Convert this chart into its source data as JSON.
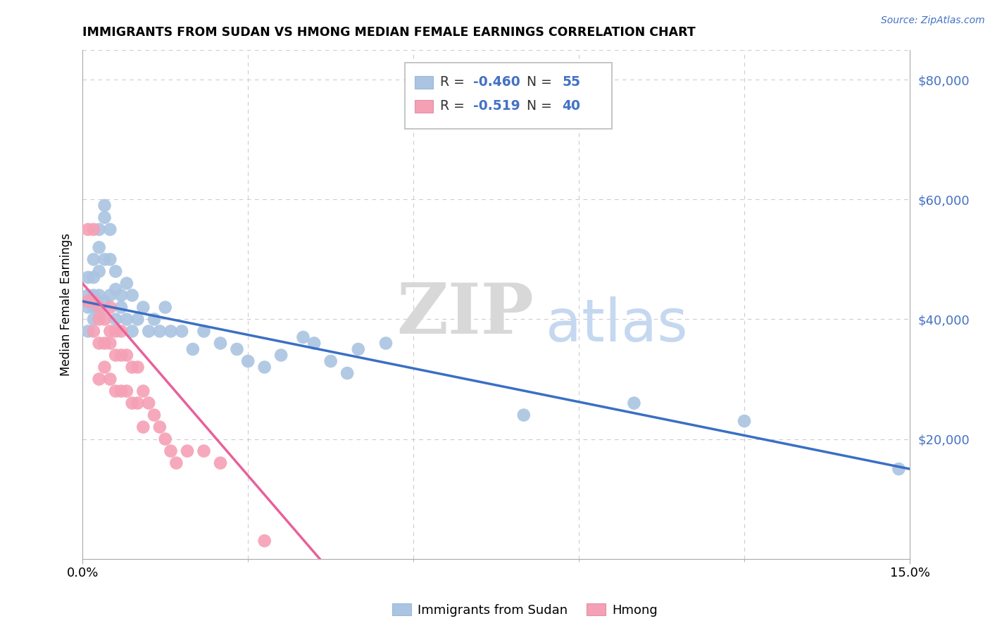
{
  "title": "IMMIGRANTS FROM SUDAN VS HMONG MEDIAN FEMALE EARNINGS CORRELATION CHART",
  "source": "Source: ZipAtlas.com",
  "ylabel": "Median Female Earnings",
  "xlim": [
    0.0,
    0.15
  ],
  "ylim": [
    0,
    85000
  ],
  "sudan_R": -0.46,
  "sudan_N": 55,
  "hmong_R": -0.519,
  "hmong_N": 40,
  "sudan_color": "#aac4e2",
  "hmong_color": "#f5a0b5",
  "sudan_line_color": "#3a6fc4",
  "hmong_line_color": "#e8609a",
  "legend_sudan_label": "Immigrants from Sudan",
  "legend_hmong_label": "Hmong",
  "watermark_ZIP": "ZIP",
  "watermark_atlas": "atlas",
  "background_color": "#ffffff",
  "grid_color": "#cccccc",
  "sudan_x": [
    0.001,
    0.001,
    0.001,
    0.001,
    0.002,
    0.002,
    0.002,
    0.002,
    0.002,
    0.003,
    0.003,
    0.003,
    0.003,
    0.003,
    0.004,
    0.004,
    0.004,
    0.004,
    0.005,
    0.005,
    0.005,
    0.006,
    0.006,
    0.006,
    0.007,
    0.007,
    0.008,
    0.008,
    0.009,
    0.009,
    0.01,
    0.011,
    0.012,
    0.013,
    0.014,
    0.015,
    0.016,
    0.018,
    0.02,
    0.022,
    0.025,
    0.028,
    0.03,
    0.033,
    0.036,
    0.04,
    0.042,
    0.045,
    0.048,
    0.05,
    0.055,
    0.08,
    0.1,
    0.12,
    0.148
  ],
  "sudan_y": [
    47000,
    44000,
    42000,
    38000,
    50000,
    47000,
    44000,
    42000,
    40000,
    55000,
    52000,
    48000,
    44000,
    41000,
    59000,
    57000,
    50000,
    43000,
    55000,
    50000,
    44000,
    48000,
    45000,
    40000,
    44000,
    42000,
    46000,
    40000,
    44000,
    38000,
    40000,
    42000,
    38000,
    40000,
    38000,
    42000,
    38000,
    38000,
    35000,
    38000,
    36000,
    35000,
    33000,
    32000,
    34000,
    37000,
    36000,
    33000,
    31000,
    35000,
    36000,
    24000,
    26000,
    23000,
    15000
  ],
  "hmong_x": [
    0.001,
    0.001,
    0.002,
    0.002,
    0.002,
    0.003,
    0.003,
    0.003,
    0.003,
    0.004,
    0.004,
    0.004,
    0.005,
    0.005,
    0.005,
    0.005,
    0.006,
    0.006,
    0.006,
    0.007,
    0.007,
    0.007,
    0.008,
    0.008,
    0.009,
    0.009,
    0.01,
    0.01,
    0.011,
    0.011,
    0.012,
    0.013,
    0.014,
    0.015,
    0.016,
    0.017,
    0.019,
    0.022,
    0.025,
    0.033
  ],
  "hmong_y": [
    55000,
    43000,
    55000,
    43000,
    38000,
    42000,
    40000,
    36000,
    30000,
    40000,
    36000,
    32000,
    42000,
    38000,
    36000,
    30000,
    38000,
    34000,
    28000,
    38000,
    34000,
    28000,
    34000,
    28000,
    32000,
    26000,
    32000,
    26000,
    28000,
    22000,
    26000,
    24000,
    22000,
    20000,
    18000,
    16000,
    18000,
    18000,
    16000,
    3000
  ],
  "hmong_trend_x0": 0.0,
  "hmong_trend_y0": 46000,
  "hmong_trend_x1": 0.043,
  "hmong_trend_y1": 0,
  "sudan_trend_x0": 0.0,
  "sudan_trend_x1": 0.15,
  "sudan_trend_y0": 43000,
  "sudan_trend_y1": 15000
}
